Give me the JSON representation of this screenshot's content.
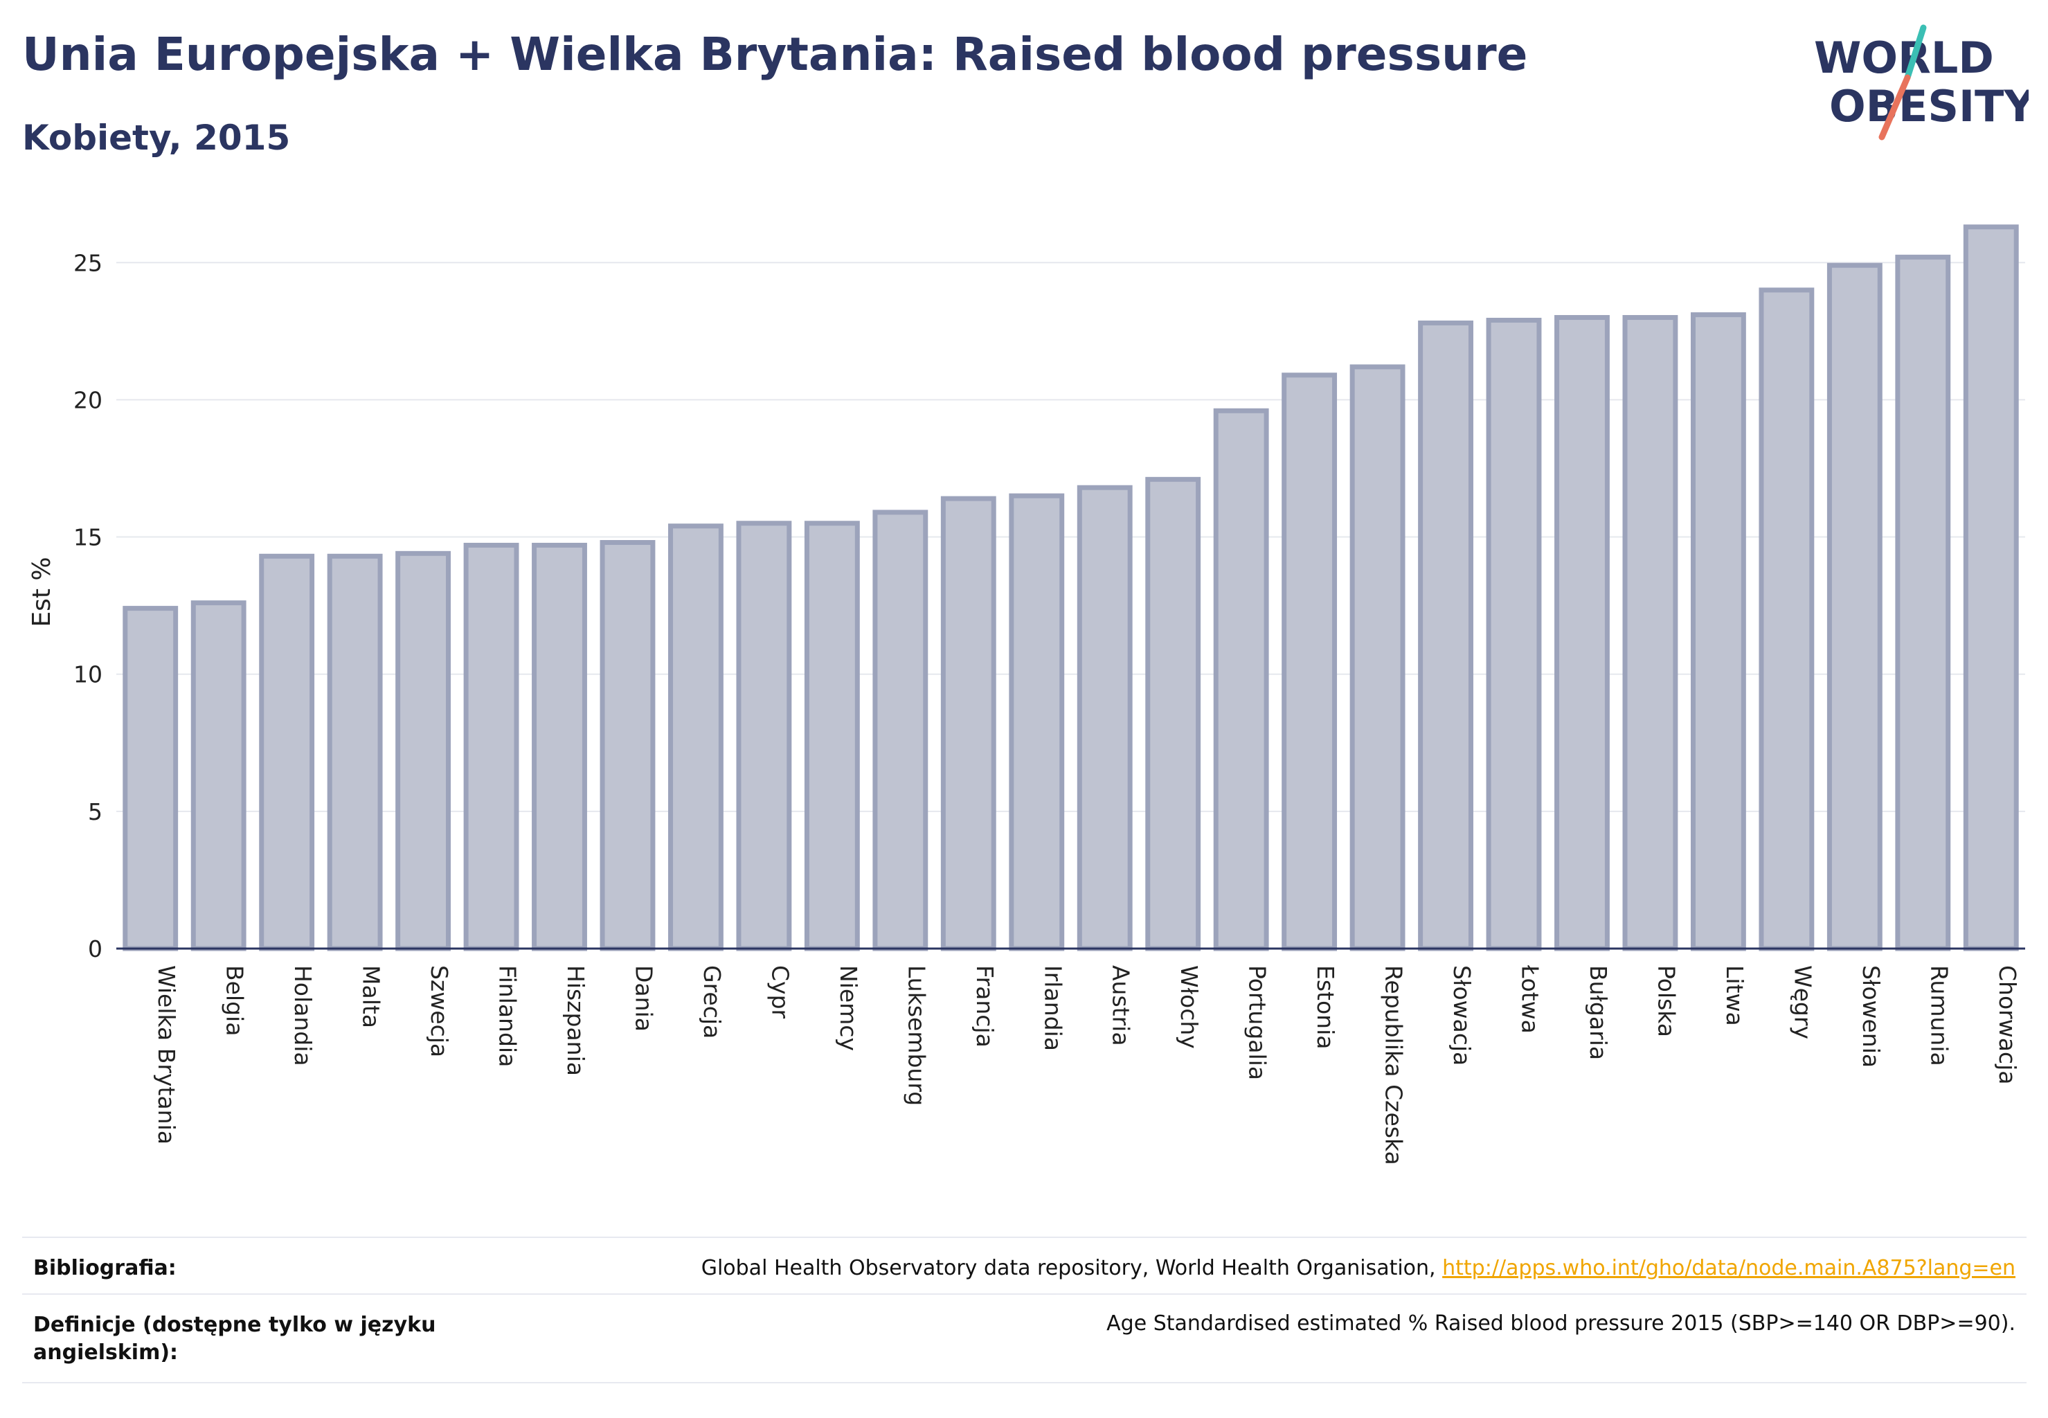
{
  "header": {
    "title": "Unia Europejska + Wielka Brytania: Raised blood pressure",
    "subtitle": "Kobiety, 2015"
  },
  "logo": {
    "line1": "WORLD",
    "line2": "OBESITY",
    "accent_colors": [
      "#3bbfb4",
      "#e8735c"
    ]
  },
  "chart_data": {
    "type": "bar",
    "title": "",
    "xlabel": "",
    "ylabel": "Est %",
    "ylim": [
      0,
      27
    ],
    "yticks": [
      0,
      5,
      10,
      15,
      20,
      25
    ],
    "grid": true,
    "categories": [
      "Wielka Brytania",
      "Belgia",
      "Holandia",
      "Malta",
      "Szwecja",
      "Finlandia",
      "Hiszpania",
      "Dania",
      "Grecja",
      "Cypr",
      "Niemcy",
      "Luksemburg",
      "Francja",
      "Irlandia",
      "Austria",
      "Włochy",
      "Portugalia",
      "Estonia",
      "Republika Czeska",
      "Słowacja",
      "Łotwa",
      "Bułgaria",
      "Polska",
      "Litwa",
      "Węgry",
      "Słowenia",
      "Rumunia",
      "Chorwacja"
    ],
    "values": [
      12.4,
      12.6,
      14.3,
      14.3,
      14.4,
      14.7,
      14.7,
      14.8,
      15.4,
      15.5,
      15.5,
      15.9,
      16.4,
      16.5,
      16.8,
      17.1,
      19.6,
      20.9,
      21.2,
      22.8,
      22.9,
      23.0,
      23.0,
      23.1,
      24.0,
      24.9,
      25.2,
      26.3
    ],
    "bar_color": "#bfc3d1",
    "bar_edge_color": "#9ca3bb"
  },
  "footer": {
    "bibliography_label": "Bibliografia:",
    "bibliography_text": "Global Health Observatory data repository, World Health Organisation,",
    "bibliography_link": "http://apps.who.int/gho/data/node.main.A875?lang=en",
    "definition_label": "Definicje (dostępne tylko w języku angielskim):",
    "definition_text": "Age Standardised estimated % Raised blood pressure 2015 (SBP>=140 OR DBP>=90)."
  }
}
